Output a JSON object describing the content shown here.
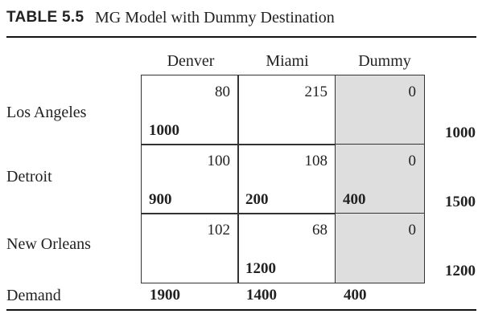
{
  "table": {
    "label": "TABLE 5.5",
    "caption": "MG Model with Dummy Destination"
  },
  "columns": [
    "Denver",
    "Miami",
    "Dummy"
  ],
  "rows": [
    {
      "name": "Los Angeles",
      "cells": [
        {
          "cost": "80",
          "allocation": "1000"
        },
        {
          "cost": "215",
          "allocation": ""
        },
        {
          "cost": "0",
          "allocation": ""
        }
      ],
      "supply": "1000"
    },
    {
      "name": "Detroit",
      "cells": [
        {
          "cost": "100",
          "allocation": "900"
        },
        {
          "cost": "108",
          "allocation": "200"
        },
        {
          "cost": "0",
          "allocation": "400"
        }
      ],
      "supply": "1500"
    },
    {
      "name": "New Orleans",
      "cells": [
        {
          "cost": "102",
          "allocation": ""
        },
        {
          "cost": "68",
          "allocation": "1200"
        },
        {
          "cost": "0",
          "allocation": ""
        }
      ],
      "supply": "1200"
    }
  ],
  "demand": {
    "label": "Demand",
    "values": [
      "1900",
      "1400",
      "400"
    ]
  },
  "colors": {
    "dummy_shading": "#dedede",
    "rule": "#111111"
  }
}
